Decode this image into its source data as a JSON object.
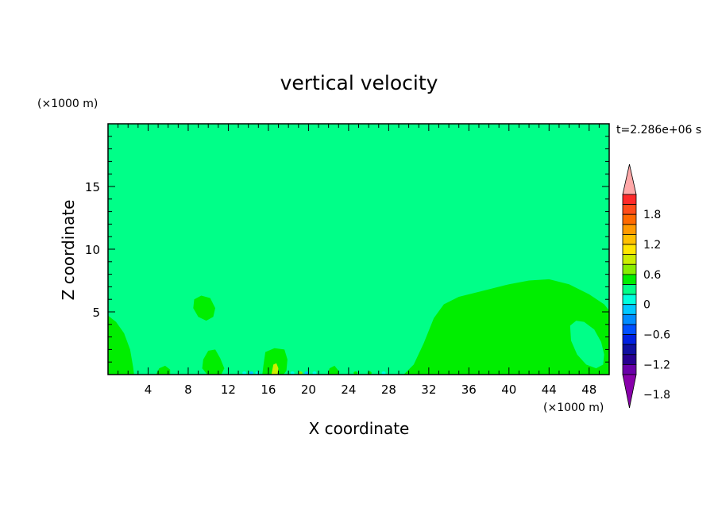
{
  "colors": {
    "background": "#ffffff",
    "field_main": "#00ff88",
    "field_positive": "#00ee00",
    "text": "#000000"
  },
  "chart_data": {
    "type": "heatmap",
    "title": "vertical velocity",
    "xlabel": "X coordinate",
    "ylabel": "Z coordinate",
    "x_unit": "(×1000 m)",
    "y_unit": "(×1000 m)",
    "time_label": "t=2.286e+06 s",
    "xlim": [
      0,
      50
    ],
    "ylim": [
      0,
      20
    ],
    "x_ticks": [
      4,
      8,
      12,
      16,
      20,
      24,
      28,
      32,
      36,
      40,
      44,
      48
    ],
    "y_ticks": [
      5,
      10,
      15
    ],
    "background_level": "-0.3 to 0",
    "regions": [
      {
        "name": "large-updraft-right",
        "level": "0 to 0.3",
        "boundary": [
          [
            29.5,
            0
          ],
          [
            30.5,
            0.8
          ],
          [
            31.5,
            2.5
          ],
          [
            32.5,
            4.5
          ],
          [
            33.5,
            5.6
          ],
          [
            35,
            6.2
          ],
          [
            37,
            6.6
          ],
          [
            40,
            7.2
          ],
          [
            42,
            7.5
          ],
          [
            44,
            7.6
          ],
          [
            46,
            7.2
          ],
          [
            48,
            6.4
          ],
          [
            49.5,
            5.6
          ],
          [
            50,
            5.1
          ],
          [
            50,
            0
          ]
        ]
      },
      {
        "name": "downdraft-pocket-right",
        "level": "-0.3 to 0",
        "boundary": [
          [
            46.1,
            3.9
          ],
          [
            46.7,
            4.3
          ],
          [
            47.5,
            4.2
          ],
          [
            48.5,
            3.6
          ],
          [
            49.2,
            2.6
          ],
          [
            49.5,
            1.6
          ],
          [
            49.4,
            0.8
          ],
          [
            48.7,
            0.5
          ],
          [
            47.7,
            0.8
          ],
          [
            46.8,
            1.6
          ],
          [
            46.2,
            2.7
          ]
        ]
      },
      {
        "name": "updraft-left-edge",
        "level": "0 to 0.3",
        "boundary": [
          [
            0,
            4.7
          ],
          [
            0.8,
            4.2
          ],
          [
            1.6,
            3.3
          ],
          [
            2.2,
            2.0
          ],
          [
            2.5,
            0.6
          ],
          [
            2.6,
            0
          ],
          [
            0,
            0
          ]
        ]
      },
      {
        "name": "updraft-blob-upper",
        "level": "0 to 0.3",
        "boundary": [
          [
            8.6,
            6.0
          ],
          [
            9.3,
            6.3
          ],
          [
            10.2,
            6.1
          ],
          [
            10.7,
            5.3
          ],
          [
            10.5,
            4.6
          ],
          [
            9.8,
            4.3
          ],
          [
            9.0,
            4.6
          ],
          [
            8.5,
            5.3
          ]
        ]
      },
      {
        "name": "updraft-blob-lower",
        "level": "0 to 0.3",
        "boundary": [
          [
            9.5,
            1.2
          ],
          [
            10,
            1.9
          ],
          [
            10.7,
            2.0
          ],
          [
            11.2,
            1.3
          ],
          [
            11.6,
            0.5
          ],
          [
            11.3,
            0
          ],
          [
            9.9,
            0
          ],
          [
            9.4,
            0.5
          ]
        ]
      },
      {
        "name": "updraft-near-16",
        "level": "0 to 0.3",
        "boundary": [
          [
            15.7,
            1.8
          ],
          [
            16.6,
            2.1
          ],
          [
            17.6,
            2.0
          ],
          [
            17.9,
            1.2
          ],
          [
            17.8,
            0.3
          ],
          [
            17.5,
            0
          ],
          [
            15.4,
            0
          ],
          [
            15.5,
            0.7
          ]
        ]
      },
      {
        "name": "updraft-small-5",
        "level": "0 to 0.3",
        "boundary": [
          [
            4.8,
            0
          ],
          [
            5.1,
            0.5
          ],
          [
            5.7,
            0.7
          ],
          [
            6.2,
            0.4
          ],
          [
            6.2,
            0
          ]
        ]
      },
      {
        "name": "updraft-small-22",
        "level": "0 to 0.3",
        "boundary": [
          [
            21.9,
            0
          ],
          [
            22.1,
            0.5
          ],
          [
            22.6,
            0.7
          ],
          [
            23.0,
            0.3
          ],
          [
            23.0,
            0
          ]
        ]
      },
      {
        "name": "yellow-core-16",
        "level": "0.3 to 0.6",
        "boundary": [
          [
            16.3,
            0
          ],
          [
            16.5,
            0.8
          ],
          [
            16.8,
            0.9
          ],
          [
            17.0,
            0.5
          ],
          [
            16.9,
            0
          ]
        ]
      }
    ],
    "colorbar": {
      "label_values": [
        "1.8",
        "1.2",
        "0.6",
        "0",
        "−0.6",
        "−1.2",
        "−1.8"
      ],
      "bins": [
        "#ff2a2a",
        "#ff4d1a",
        "#ff6a00",
        "#ff9a00",
        "#ffc000",
        "#ffe600",
        "#ccee00",
        "#88ee00",
        "#00ee00",
        "#00ff88",
        "#00ffdd",
        "#00c8ff",
        "#008cff",
        "#0050ff",
        "#0020e0",
        "#1010a0",
        "#280090",
        "#6a00a8"
      ],
      "over_color": "#ffa8a8",
      "under_color": "#8800aa"
    }
  }
}
